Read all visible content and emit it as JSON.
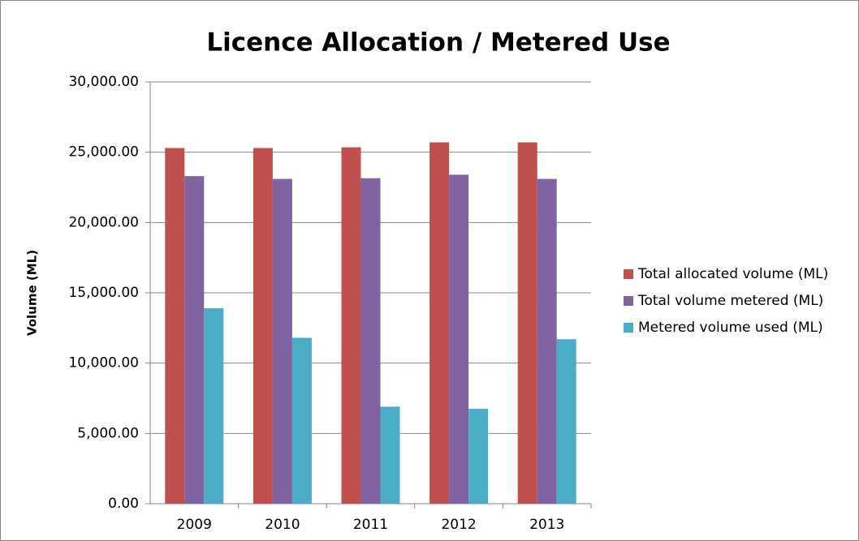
{
  "chart_data": {
    "type": "bar",
    "title": "Licence Allocation / Metered Use",
    "y_label": "Volume (ML)",
    "categories": [
      "2009",
      "2010",
      "2011",
      "2012",
      "2013"
    ],
    "series": [
      {
        "name": "Total allocated volume (ML)",
        "color": "#c0504d",
        "values": [
          25300,
          25300,
          25350,
          25700,
          25700
        ]
      },
      {
        "name": "Total volume metered (ML)",
        "color": "#8064a2",
        "values": [
          23300,
          23100,
          23150,
          23400,
          23100
        ]
      },
      {
        "name": "Metered volume used (ML)",
        "color": "#4bacc6",
        "values": [
          13900,
          11800,
          6900,
          6750,
          11700
        ]
      }
    ],
    "ylim": [
      0,
      30000
    ],
    "yticks": [
      {
        "value": 0,
        "label": "0.00"
      },
      {
        "value": 5000,
        "label": "5,000.00"
      },
      {
        "value": 10000,
        "label": "10,000.00"
      },
      {
        "value": 15000,
        "label": "15,000.00"
      },
      {
        "value": 20000,
        "label": "20,000.00"
      },
      {
        "value": 25000,
        "label": "25,000.00"
      },
      {
        "value": 30000,
        "label": "30,000.00"
      }
    ],
    "grid": true,
    "legend": "right"
  }
}
